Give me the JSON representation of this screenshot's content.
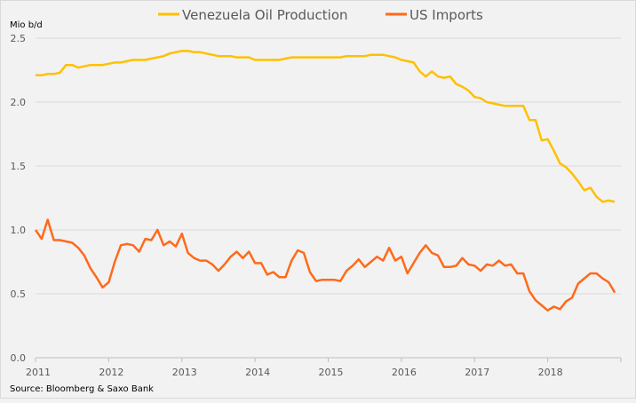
{
  "chart_data": {
    "type": "line",
    "ylabel": "Mio b/d",
    "source": "Source: Bloomberg & Saxo Bank",
    "ylim": [
      0,
      2.5
    ],
    "xlim": [
      2011,
      2019
    ],
    "yticks": [
      "0.0",
      "0.5",
      "1.0",
      "1.5",
      "2.0",
      "2.5"
    ],
    "xticks": [
      "2011",
      "2012",
      "2013",
      "2014",
      "2015",
      "2016",
      "2017",
      "2018"
    ],
    "x_start": 2011,
    "x_step_months": 1,
    "grid": "horizontal",
    "legend_position": "top-center",
    "series": [
      {
        "name": "Venezuela Oil Production",
        "color": "#ffc000",
        "values": [
          2.21,
          2.21,
          2.22,
          2.22,
          2.23,
          2.29,
          2.29,
          2.27,
          2.28,
          2.29,
          2.29,
          2.29,
          2.3,
          2.31,
          2.31,
          2.32,
          2.33,
          2.33,
          2.33,
          2.34,
          2.35,
          2.36,
          2.38,
          2.39,
          2.4,
          2.4,
          2.39,
          2.39,
          2.38,
          2.37,
          2.36,
          2.36,
          2.36,
          2.35,
          2.35,
          2.35,
          2.33,
          2.33,
          2.33,
          2.33,
          2.33,
          2.34,
          2.35,
          2.35,
          2.35,
          2.35,
          2.35,
          2.35,
          2.35,
          2.35,
          2.35,
          2.36,
          2.36,
          2.36,
          2.36,
          2.37,
          2.37,
          2.37,
          2.36,
          2.35,
          2.33,
          2.32,
          2.31,
          2.24,
          2.2,
          2.24,
          2.2,
          2.19,
          2.2,
          2.14,
          2.12,
          2.09,
          2.04,
          2.03,
          2.0,
          1.99,
          1.98,
          1.97,
          1.97,
          1.97,
          1.97,
          1.86,
          1.86,
          1.7,
          1.71,
          1.62,
          1.52,
          1.49,
          1.44,
          1.38,
          1.31,
          1.33,
          1.26,
          1.22,
          1.23,
          1.22
        ]
      },
      {
        "name": "US Imports",
        "color": "#ff6a1a",
        "values": [
          1.0,
          0.93,
          1.08,
          0.92,
          0.92,
          0.91,
          0.9,
          0.86,
          0.8,
          0.7,
          0.63,
          0.55,
          0.59,
          0.75,
          0.88,
          0.89,
          0.88,
          0.83,
          0.93,
          0.92,
          1.0,
          0.88,
          0.91,
          0.87,
          0.97,
          0.82,
          0.78,
          0.76,
          0.76,
          0.73,
          0.68,
          0.73,
          0.79,
          0.83,
          0.78,
          0.83,
          0.74,
          0.74,
          0.65,
          0.67,
          0.63,
          0.63,
          0.76,
          0.84,
          0.82,
          0.67,
          0.6,
          0.61,
          0.61,
          0.61,
          0.6,
          0.68,
          0.72,
          0.77,
          0.71,
          0.75,
          0.79,
          0.76,
          0.86,
          0.76,
          0.79,
          0.66,
          0.74,
          0.82,
          0.88,
          0.82,
          0.8,
          0.71,
          0.71,
          0.72,
          0.78,
          0.73,
          0.72,
          0.68,
          0.73,
          0.72,
          0.76,
          0.72,
          0.73,
          0.66,
          0.66,
          0.52,
          0.45,
          0.41,
          0.37,
          0.4,
          0.38,
          0.44,
          0.47,
          0.58,
          0.62,
          0.66,
          0.66,
          0.62,
          0.59,
          0.51
        ]
      }
    ]
  }
}
